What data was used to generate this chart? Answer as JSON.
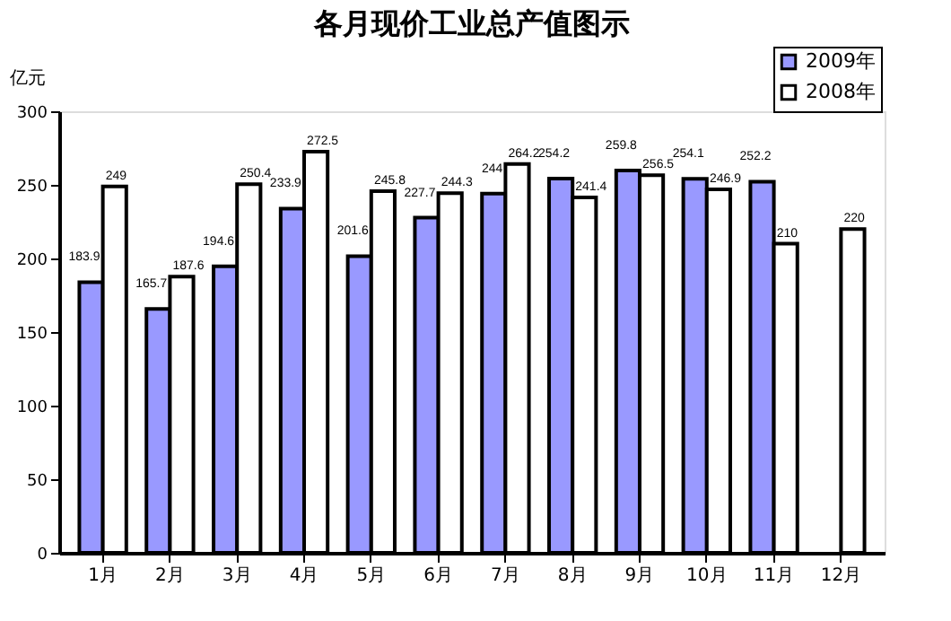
{
  "chart_data": {
    "type": "bar",
    "title": "各月现价工业总产值图示",
    "ylabel": "亿元",
    "categories": [
      "1月",
      "2月",
      "3月",
      "4月",
      "5月",
      "6月",
      "7月",
      "8月",
      "9月",
      "10月",
      "11月",
      "12月"
    ],
    "series": [
      {
        "name": "2009年",
        "color": "#9999ff",
        "values": [
          183.9,
          165.7,
          194.6,
          233.9,
          201.6,
          227.7,
          244,
          254.2,
          259.8,
          254.1,
          252.2,
          null
        ]
      },
      {
        "name": "2008年",
        "color": "#ffffff",
        "values": [
          249,
          187.6,
          250.4,
          272.5,
          245.8,
          244.3,
          264.2,
          241.4,
          256.5,
          246.9,
          210,
          220
        ]
      }
    ],
    "ylim": [
      0,
      300
    ],
    "yticks": [
      0,
      50,
      100,
      150,
      200,
      250,
      300
    ],
    "grid": false,
    "legend": "top right",
    "data_labels": true
  }
}
